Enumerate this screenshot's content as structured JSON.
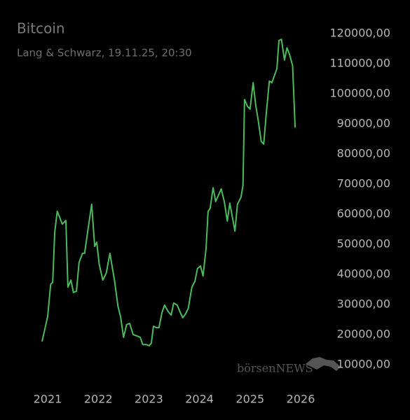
{
  "chart_data": {
    "type": "line",
    "title": "Bitcoin",
    "subtitle": "Lang & Schwarz, 19.11.25, 20:30",
    "watermark": "börsenNEWS",
    "color": "#4cba5c",
    "x": [
      2020.89,
      2021.0,
      2021.06,
      2021.1,
      2021.14,
      2021.19,
      2021.29,
      2021.36,
      2021.4,
      2021.46,
      2021.51,
      2021.57,
      2021.62,
      2021.69,
      2021.73,
      2021.8,
      2021.87,
      2021.93,
      2021.97,
      2022.02,
      2022.09,
      2022.16,
      2022.23,
      2022.32,
      2022.39,
      2022.44,
      2022.5,
      2022.56,
      2022.62,
      2022.69,
      2022.77,
      2022.83,
      2022.88,
      2022.95,
      2023.01,
      2023.05,
      2023.09,
      2023.15,
      2023.2,
      2023.26,
      2023.31,
      2023.38,
      2023.44,
      2023.49,
      2023.56,
      2023.62,
      2023.67,
      2023.73,
      2023.78,
      2023.85,
      2023.91,
      2023.96,
      2024.02,
      2024.07,
      2024.13,
      2024.17,
      2024.21,
      2024.27,
      2024.32,
      2024.38,
      2024.43,
      2024.49,
      2024.55,
      2024.6,
      2024.66,
      2024.7,
      2024.75,
      2024.82,
      2024.86,
      2024.89,
      2024.95,
      2025.0,
      2025.06,
      2025.11,
      2025.16,
      2025.22,
      2025.27,
      2025.32,
      2025.38,
      2025.43,
      2025.48,
      2025.53,
      2025.57,
      2025.62,
      2025.68,
      2025.73,
      2025.78,
      2025.84,
      2025.89
    ],
    "values": [
      17700,
      26000,
      36700,
      37400,
      54000,
      61000,
      56700,
      57900,
      35800,
      38100,
      34000,
      34400,
      44000,
      47000,
      47000,
      55300,
      63300,
      49300,
      50700,
      43300,
      38100,
      40500,
      47000,
      38100,
      29300,
      26000,
      19100,
      23300,
      23700,
      20000,
      19500,
      19100,
      16700,
      16700,
      16300,
      17200,
      22800,
      22300,
      22300,
      27400,
      29800,
      27700,
      26500,
      30500,
      29800,
      27400,
      25600,
      27000,
      28800,
      35800,
      37700,
      41900,
      42800,
      39500,
      48600,
      60900,
      61900,
      68800,
      64200,
      66500,
      68400,
      64200,
      57700,
      63700,
      58100,
      54400,
      63300,
      65600,
      69500,
      98100,
      95800,
      94900,
      103700,
      96300,
      91200,
      84200,
      83300,
      93500,
      104200,
      103700,
      106000,
      108400,
      117700,
      118100,
      111200,
      115300,
      113000,
      109300,
      88800
    ],
    "xlim": [
      2020.6,
      2026.3
    ],
    "xticks": [
      2021,
      2022,
      2023,
      2024,
      2025,
      2026
    ],
    "ylim": [
      10000,
      120000
    ],
    "yticks": [
      {
        "value": 10000,
        "label": "10000,00"
      },
      {
        "value": 20000,
        "label": "20000,00"
      },
      {
        "value": 30000,
        "label": "30000,00"
      },
      {
        "value": 40000,
        "label": "40000,00"
      },
      {
        "value": 50000,
        "label": "50000,00"
      },
      {
        "value": 60000,
        "label": "60000,00"
      },
      {
        "value": 70000,
        "label": "70000,00"
      },
      {
        "value": 80000,
        "label": "80000,00"
      },
      {
        "value": 90000,
        "label": "90000,00"
      },
      {
        "value": 100000,
        "label": "100000,00"
      },
      {
        "value": 110000,
        "label": "110000,00"
      },
      {
        "value": 120000,
        "label": "120000,00"
      }
    ]
  }
}
